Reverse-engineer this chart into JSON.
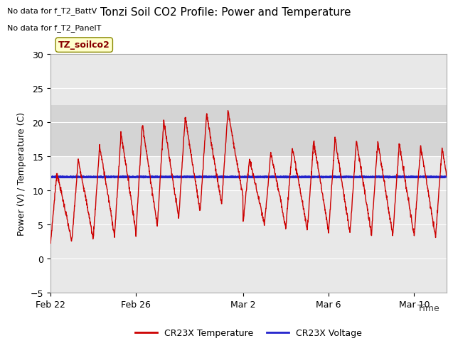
{
  "title": "Tonzi Soil CO2 Profile: Power and Temperature",
  "ylabel": "Power (V) / Temperature (C)",
  "xlabel": "Time",
  "no_data_text1": "No data for f_T2_BattV",
  "no_data_text2": "No data for f_T2_PanelT",
  "legend_label": "TZ_soilco2",
  "legend1": "CR23X Temperature",
  "legend2": "CR23X Voltage",
  "ylim": [
    -5,
    30
  ],
  "yticks": [
    -5,
    0,
    5,
    10,
    15,
    20,
    25,
    30
  ],
  "x_tick_labels": [
    "Feb 22",
    "Feb 26",
    "Mar 2",
    "Mar 6",
    "Mar 10"
  ],
  "xtick_positions": [
    0,
    4,
    9,
    13,
    17
  ],
  "voltage_level": 12.0,
  "bg_band_low": 15.0,
  "bg_band_high": 22.5,
  "red_color": "#cc0000",
  "blue_color": "#2222cc",
  "bg_color": "#e8e8e8",
  "band_color": "#d4d4d4",
  "total_days": 19,
  "xlim_end": 18.5
}
